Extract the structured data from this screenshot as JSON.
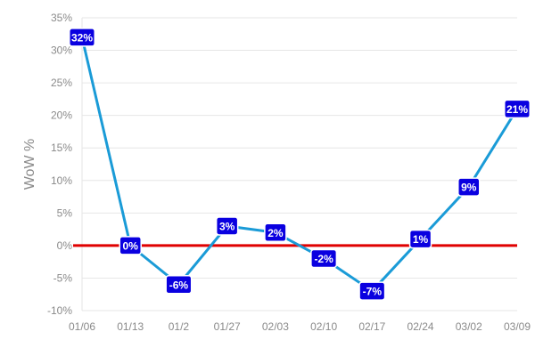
{
  "chart_data": {
    "type": "line",
    "title": "",
    "xlabel": "",
    "ylabel": "WoW %",
    "categories": [
      "01/06",
      "01/13",
      "01/2",
      "01/27",
      "02/03",
      "02/10",
      "02/17",
      "02/24",
      "03/02",
      "03/09"
    ],
    "series": [
      {
        "values": [
          32,
          0,
          -6,
          3,
          2,
          -2,
          -7,
          1,
          9,
          21
        ],
        "data_labels": [
          "32%",
          "0%",
          "-6%",
          "3%",
          "2%",
          "-2%",
          "-7%",
          "1%",
          "9%",
          "21%"
        ]
      }
    ],
    "ylim": [
      -10,
      35
    ],
    "yticks": [
      -10,
      -5,
      0,
      5,
      10,
      15,
      20,
      25,
      30,
      35
    ],
    "ytick_labels": [
      "-10%",
      "-5%",
      "0%",
      "5%",
      "10%",
      "15%",
      "20%",
      "25%",
      "30%",
      "35%"
    ],
    "reference_line": {
      "value": 0,
      "color": "#e00000"
    },
    "grid": "horizontal",
    "colors": {
      "line": "#1a9bd7",
      "label_background": "#0a00e0",
      "label_text": "#ffffff",
      "grid": "#e6e6e6"
    }
  }
}
